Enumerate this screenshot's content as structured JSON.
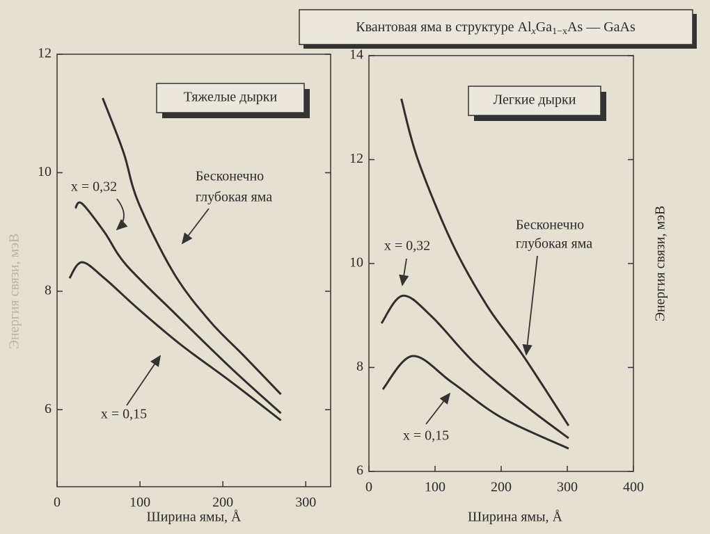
{
  "header": {
    "title_parts": [
      "Квантовая яма в структуре Al",
      "x",
      "Ga",
      "1−x",
      "As — GaAs"
    ]
  },
  "chart_data": [
    {
      "type": "line",
      "title": "Тяжелые дырки",
      "x_label": "Ширина ямы, Å",
      "y_label": "Энергия связи, мэВ",
      "xlim": [
        0,
        330
      ],
      "ylim": [
        4.7,
        12
      ],
      "xticks": [
        0,
        100,
        200,
        300
      ],
      "yticks": [
        6,
        8,
        10,
        12
      ],
      "annotations": [
        "Бесконечно",
        "глубокая яма",
        "x = 0,32",
        "x = 0,15"
      ],
      "series": [
        {
          "color": "#2e2e2e",
          "x": [
            55,
            80,
            98,
            141,
            184,
            226,
            270
          ],
          "values": [
            11.26,
            10.35,
            9.5,
            8.3,
            7.5,
            6.9,
            6.26
          ]
        },
        {
          "color": "#2e2e2e",
          "x": [
            22,
            30,
            57,
            83,
            141,
            210,
            270
          ],
          "values": [
            9.4,
            9.48,
            9.0,
            8.45,
            7.64,
            6.7,
            5.94
          ]
        },
        {
          "color": "#2e2e2e",
          "x": [
            15,
            30,
            57,
            98,
            149,
            210,
            270
          ],
          "values": [
            8.22,
            8.49,
            8.22,
            7.7,
            7.1,
            6.47,
            5.82
          ]
        }
      ]
    },
    {
      "type": "line",
      "title": "Легкие дырки",
      "x_label": "Ширина ямы, Å",
      "y_label": "Энергия связи, мэВ",
      "xlim": [
        0,
        400
      ],
      "ylim": [
        6,
        14
      ],
      "xticks": [
        0,
        100,
        200,
        300,
        400
      ],
      "yticks": [
        6,
        8,
        10,
        12,
        14
      ],
      "annotations": [
        "Бесконечно",
        "глубокая яма",
        "x = 0,32",
        "x = 0,15"
      ],
      "series": [
        {
          "color": "#2e2e2e",
          "x": [
            49,
            74,
            126,
            179,
            232,
            302
          ],
          "values": [
            13.17,
            12.0,
            10.39,
            9.18,
            8.25,
            6.88
          ]
        },
        {
          "color": "#2e2e2e",
          "x": [
            19,
            51,
            95,
            158,
            232,
            302
          ],
          "values": [
            8.85,
            9.38,
            8.98,
            8.11,
            7.31,
            6.64
          ]
        },
        {
          "color": "#2e2e2e",
          "x": [
            21,
            66,
            126,
            200,
            302
          ],
          "values": [
            7.58,
            8.22,
            7.71,
            7.04,
            6.44
          ]
        }
      ]
    }
  ]
}
